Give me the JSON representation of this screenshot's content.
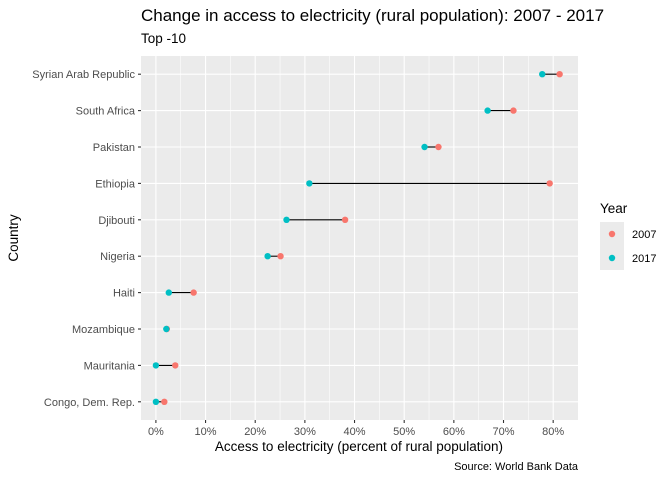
{
  "chart_data": {
    "type": "dumbbell",
    "title": "Change in access to electricity (rural population): 2007 - 2017",
    "subtitle": "Top -10",
    "xlabel": "Access to electricity (percent of rural population)",
    "ylabel": "Country",
    "caption": "Source: World Bank Data",
    "xlim": [
      -3,
      85
    ],
    "x_ticks": [
      0,
      10,
      20,
      30,
      40,
      50,
      60,
      70,
      80
    ],
    "x_tick_labels": [
      "0%",
      "10%",
      "20%",
      "30%",
      "40%",
      "50%",
      "60%",
      "70%",
      "80%"
    ],
    "grid": true,
    "legend": {
      "title": "Year",
      "position": "right",
      "entries": [
        {
          "label": "2007",
          "color": "#F8766D"
        },
        {
          "label": "2017",
          "color": "#00BFC4"
        }
      ]
    },
    "categories": [
      "Syrian Arab Republic",
      "South Africa",
      "Pakistan",
      "Ethiopia",
      "Djibouti",
      "Nigeria",
      "Haiti",
      "Mozambique",
      "Mauritania",
      "Congo, Dem. Rep."
    ],
    "series": [
      {
        "name": "2007",
        "color": "#F8766D",
        "values": [
          81.3,
          72.0,
          56.9,
          79.3,
          38.1,
          25.1,
          7.6,
          2.2,
          3.9,
          1.7
        ]
      },
      {
        "name": "2017",
        "color": "#00BFC4",
        "values": [
          77.8,
          66.8,
          54.1,
          30.9,
          26.3,
          22.5,
          2.6,
          2.1,
          0.0,
          0.0
        ]
      }
    ]
  },
  "colors": {
    "panel_background": "#EBEBEB",
    "grid_major": "#FFFFFF",
    "segment": "#000000"
  }
}
